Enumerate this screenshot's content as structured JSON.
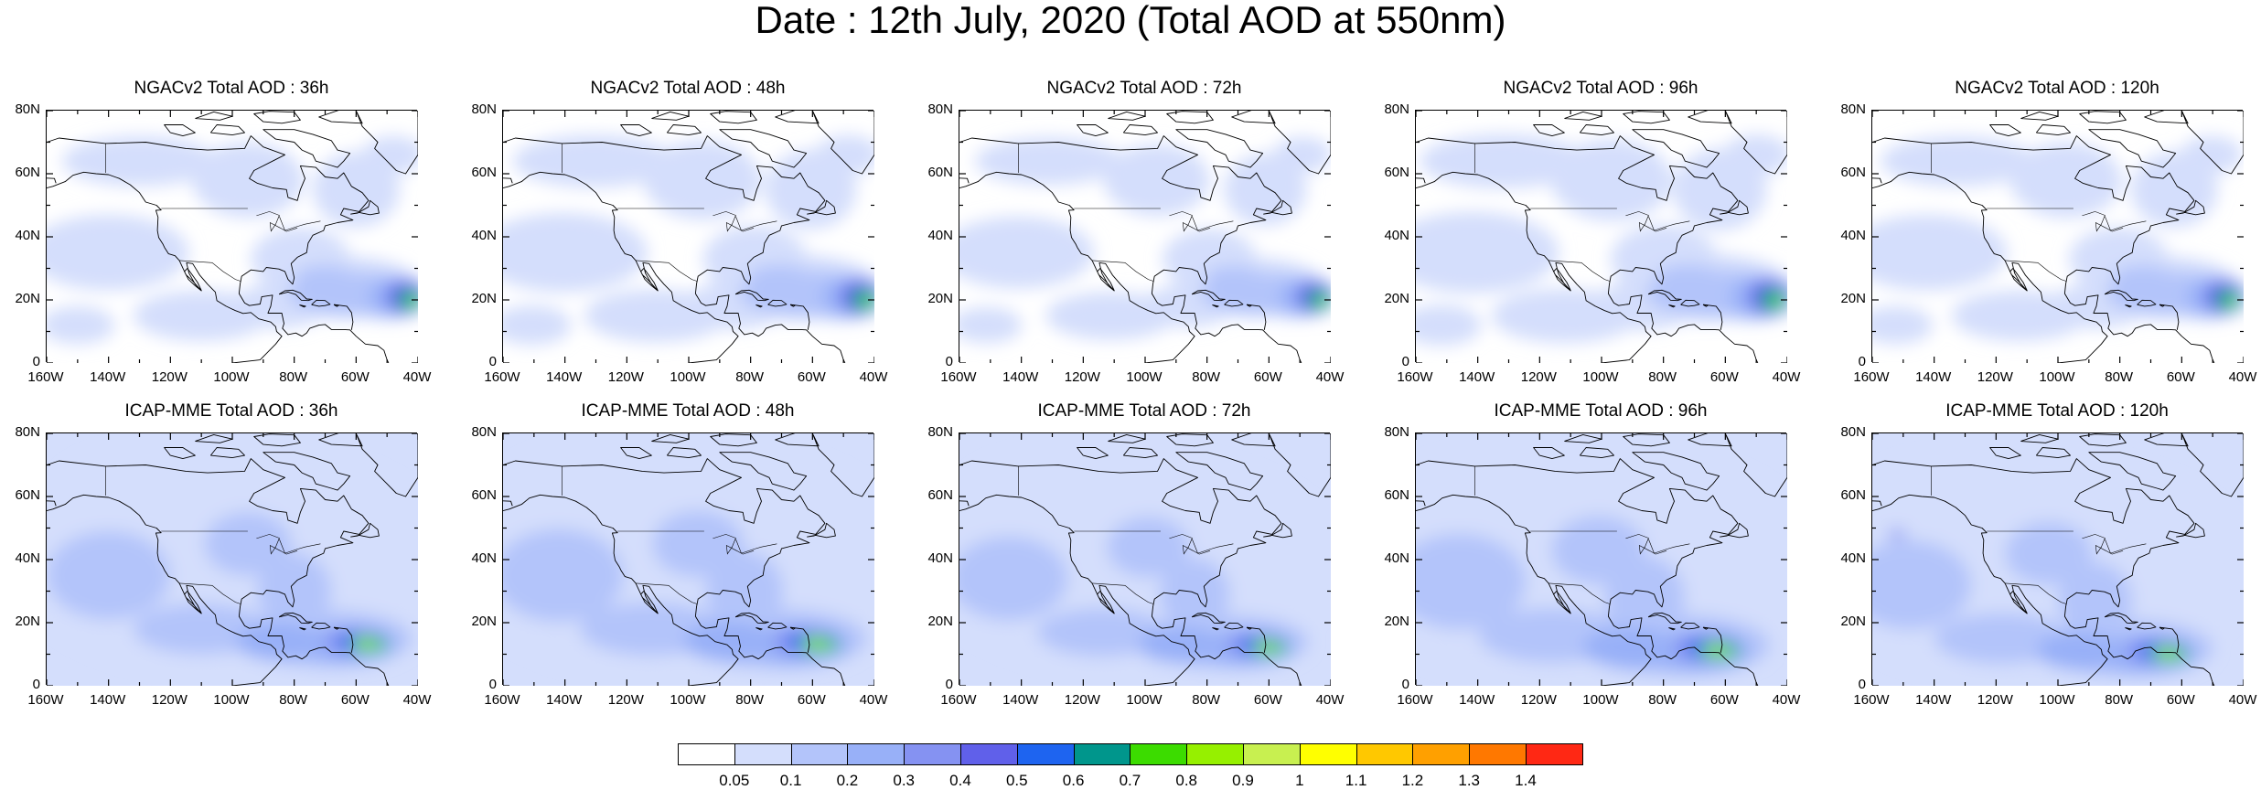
{
  "title": "Date : 12th July, 2020 (Total AOD at 550nm)",
  "map": {
    "lon_range": [
      "160W",
      "40W"
    ],
    "lat_range": [
      "0",
      "80N"
    ],
    "x_ticks": [
      "160W",
      "140W",
      "120W",
      "100W",
      "80W",
      "60W",
      "40W"
    ],
    "y_ticks": [
      "0",
      "20N",
      "40N",
      "60N",
      "80N"
    ]
  },
  "rows": [
    {
      "model": "NGACv2",
      "panels": [
        {
          "title": "NGACv2 Total AOD : 36h",
          "lead": "36h"
        },
        {
          "title": "NGACv2 Total AOD : 48h",
          "lead": "48h"
        },
        {
          "title": "NGACv2 Total AOD : 72h",
          "lead": "72h"
        },
        {
          "title": "NGACv2 Total AOD : 96h",
          "lead": "96h"
        },
        {
          "title": "NGACv2 Total AOD : 120h",
          "lead": "120h"
        }
      ]
    },
    {
      "model": "ICAP-MME",
      "panels": [
        {
          "title": "ICAP-MME Total AOD : 36h",
          "lead": "36h"
        },
        {
          "title": "ICAP-MME Total AOD : 48h",
          "lead": "48h"
        },
        {
          "title": "ICAP-MME Total AOD : 72h",
          "lead": "72h"
        },
        {
          "title": "ICAP-MME Total AOD : 96h",
          "lead": "96h"
        },
        {
          "title": "ICAP-MME Total AOD : 120h",
          "lead": "120h"
        }
      ]
    }
  ],
  "colorbar": {
    "labels": [
      "0.05",
      "0.1",
      "0.2",
      "0.3",
      "0.4",
      "0.5",
      "0.6",
      "0.7",
      "0.8",
      "0.9",
      "1",
      "1.1",
      "1.2",
      "1.3",
      "1.4"
    ],
    "colors": [
      "#ffffff",
      "#d4defc",
      "#b3c4fa",
      "#98b0f8",
      "#8592f2",
      "#6060ea",
      "#1e64f0",
      "#00968c",
      "#3cdc00",
      "#96f000",
      "#c8f050",
      "#ffff00",
      "#ffc800",
      "#ffa000",
      "#ff7800",
      "#ff2814"
    ]
  }
}
